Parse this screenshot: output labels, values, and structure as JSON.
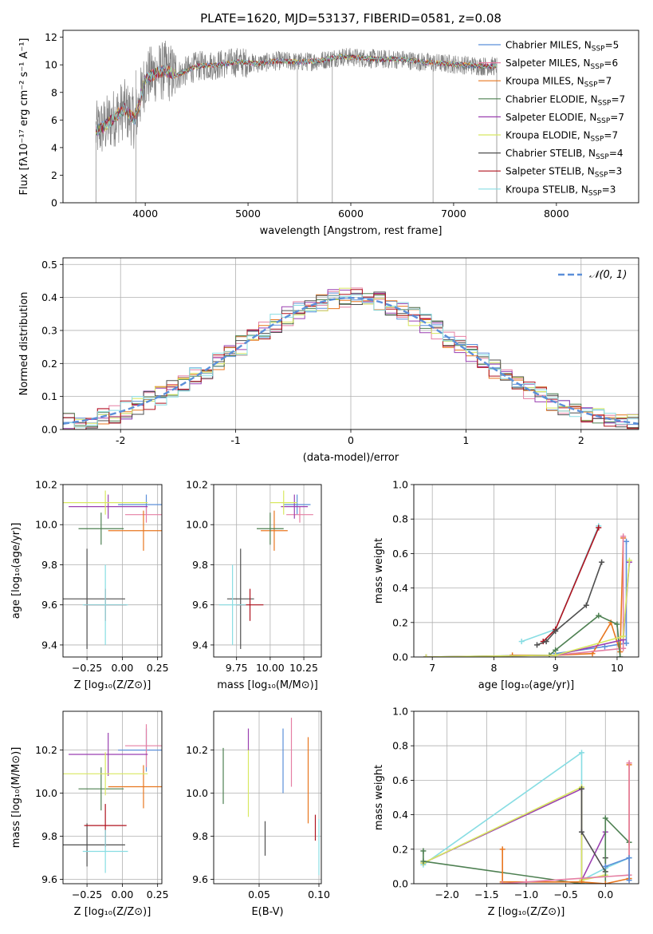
{
  "figure": {
    "title": "PLATE=1620, MJD=53137, FIBERID=0581, z=0.08"
  },
  "colors": {
    "Chabrier MILES": "#5b8fd9",
    "Salpeter MILES": "#e57fa3",
    "Kroupa MILES": "#e8761f",
    "Chabrier ELODIE": "#4e8052",
    "Salpeter ELODIE": "#9a3fb0",
    "Kroupa ELODIE": "#d8e860",
    "Chabrier STELIB": "#4f4f4f",
    "Salpeter STELIB": "#b0131f",
    "Kroupa STELIB": "#88dde3"
  },
  "chart_data": [
    {
      "id": "spectrum",
      "type": "line",
      "xlabel": "wavelength [Angstrom, rest frame]",
      "ylabel": "Flux [fλ10⁻¹⁷ erg cm⁻² s⁻¹ A⁻¹]",
      "xlim": [
        3200,
        8800
      ],
      "ylim": [
        0,
        12.5
      ],
      "xticks": [
        4000,
        5000,
        6000,
        7000,
        8000
      ],
      "yticks": [
        0,
        2,
        4,
        6,
        8,
        10,
        12
      ],
      "grid": false,
      "legend_position": "right",
      "legend": [
        {
          "label": "Chabrier MILES, N",
          "sub": "SSP",
          "suffix": "=5",
          "model": "Chabrier MILES"
        },
        {
          "label": "Salpeter MILES, N",
          "sub": "SSP",
          "suffix": "=6",
          "model": "Salpeter MILES"
        },
        {
          "label": "Kroupa MILES, N",
          "sub": "SSP",
          "suffix": "=7",
          "model": "Kroupa MILES"
        },
        {
          "label": "Chabrier ELODIE, N",
          "sub": "SSP",
          "suffix": "=7",
          "model": "Chabrier ELODIE"
        },
        {
          "label": "Salpeter ELODIE, N",
          "sub": "SSP",
          "suffix": "=7",
          "model": "Salpeter ELODIE"
        },
        {
          "label": "Kroupa ELODIE, N",
          "sub": "SSP",
          "suffix": "=7",
          "model": "Kroupa ELODIE"
        },
        {
          "label": "Chabrier STELIB, N",
          "sub": "SSP",
          "suffix": "=4",
          "model": "Chabrier STELIB"
        },
        {
          "label": "Salpeter STELIB, N",
          "sub": "SSP",
          "suffix": "=3",
          "model": "Salpeter STELIB"
        },
        {
          "label": "Kroupa STELIB, N",
          "sub": "SSP",
          "suffix": "=3",
          "model": "Kroupa STELIB"
        }
      ],
      "data_color": "#808080",
      "model_curve": {
        "x": [
          3520,
          3600,
          3700,
          3800,
          3900,
          4000,
          4100,
          4200,
          4300,
          4500,
          4700,
          4900,
          5100,
          5300,
          5500,
          5700,
          5900,
          6100,
          6300,
          6500,
          6700,
          6900,
          7100,
          7300,
          7420
        ],
        "y": [
          5.2,
          5.5,
          6.2,
          6.8,
          6.0,
          9.0,
          9.4,
          9.6,
          9.2,
          9.9,
          10.0,
          10.2,
          10.1,
          10.3,
          10.2,
          10.3,
          10.6,
          10.5,
          10.4,
          10.4,
          10.2,
          10.1,
          10.0,
          9.9,
          9.9
        ]
      }
    },
    {
      "id": "residuals",
      "type": "bar",
      "xlabel": "(data-model)/error",
      "ylabel": "Normed distribution",
      "xlim": [
        -2.5,
        2.5
      ],
      "ylim": [
        0,
        0.52
      ],
      "xticks": [
        -2,
        -1,
        0,
        1,
        2
      ],
      "yticks": [
        0.0,
        0.1,
        0.2,
        0.3,
        0.4,
        0.5
      ],
      "grid": true,
      "legend_position": "top-right",
      "reference": {
        "label": "𝒩(0, 1)",
        "color": "#5b8fd9"
      },
      "bin_start": -2.5,
      "bin_width": 0.1
    },
    {
      "id": "age-vs-Z",
      "type": "scatter",
      "xlabel": "Z [log₁₀(Z/Z⊙)]",
      "ylabel": "age  [log₁₀(age/yr)]",
      "xlim": [
        -0.42,
        0.28
      ],
      "ylim": [
        9.34,
        10.2
      ],
      "xticks": [
        -0.25,
        0.0,
        0.25
      ],
      "xticklabels": [
        "−0.25",
        "0.00",
        "0.25"
      ],
      "yticks": [
        9.4,
        9.6,
        9.8,
        10.0,
        10.2
      ],
      "grid": true,
      "points": [
        {
          "model": "Chabrier MILES",
          "x": 0.17,
          "xe": 0.2,
          "y": 10.1,
          "ye": 0.05
        },
        {
          "model": "Salpeter MILES",
          "x": 0.17,
          "xe": 0.15,
          "y": 10.05,
          "ye": 0.04
        },
        {
          "model": "Kroupa MILES",
          "x": 0.15,
          "xe": 0.25,
          "y": 9.97,
          "ye": 0.1
        },
        {
          "model": "Chabrier ELODIE",
          "x": -0.15,
          "xe": 0.16,
          "y": 9.98,
          "ye": 0.08
        },
        {
          "model": "Salpeter ELODIE",
          "x": -0.1,
          "xe": 0.28,
          "y": 10.09,
          "ye": 0.06
        },
        {
          "model": "Kroupa ELODIE",
          "x": -0.12,
          "xe": 0.3,
          "y": 10.11,
          "ye": 0.06
        },
        {
          "model": "Chabrier STELIB",
          "x": -0.25,
          "xe": 0.27,
          "y": 9.63,
          "ye": 0.25
        },
        {
          "model": "Salpeter STELIB",
          "x": -0.12,
          "xe": 0.15,
          "y": 9.6,
          "ye": 0.08
        },
        {
          "model": "Kroupa STELIB",
          "x": -0.12,
          "xe": 0.16,
          "y": 9.6,
          "ye": 0.2
        }
      ]
    },
    {
      "id": "age-vs-mass",
      "type": "scatter",
      "xlabel": "mass [log₁₀(M/M⊙)]",
      "ylabel": "",
      "xlim": [
        9.58,
        10.38
      ],
      "ylim": [
        9.34,
        10.2
      ],
      "xticks": [
        9.75,
        10.0,
        10.25
      ],
      "xticklabels": [
        "9.75",
        "10.00",
        "10.25"
      ],
      "yticks": [
        9.4,
        9.6,
        9.8,
        10.0,
        10.2
      ],
      "grid": true
    },
    {
      "id": "weight-vs-age",
      "type": "line",
      "xlabel": "age  [log₁₀(age/yr)]",
      "ylabel": "mass weight",
      "xlim": [
        6.7,
        10.35
      ],
      "ylim": [
        0,
        1.0
      ],
      "xticks": [
        7,
        8,
        9,
        10
      ],
      "yticks": [
        0.0,
        0.2,
        0.4,
        0.6,
        0.8,
        1.0
      ],
      "grid": true,
      "series": [
        {
          "model": "Kroupa STELIB",
          "x": [
            8.45,
            9.0,
            9.7
          ],
          "y": [
            0.09,
            0.16,
            0.76
          ]
        },
        {
          "model": "Salpeter STELIB",
          "x": [
            8.8,
            9.0,
            9.7
          ],
          "y": [
            0.09,
            0.16,
            0.75
          ]
        },
        {
          "model": "Chabrier STELIB",
          "x": [
            8.7,
            8.85,
            9.0,
            9.5,
            9.75
          ],
          "y": [
            0.07,
            0.09,
            0.15,
            0.3,
            0.55
          ]
        },
        {
          "model": "Chabrier MILES",
          "x": [
            9.0,
            9.8,
            10.15,
            10.15
          ],
          "y": [
            0.02,
            0.06,
            0.08,
            0.67
          ]
        },
        {
          "model": "Kroupa MILES",
          "x": [
            8.3,
            9.0,
            9.6,
            9.9,
            10.05,
            10.1
          ],
          "y": [
            0.01,
            0.01,
            0.02,
            0.2,
            0.03,
            0.69
          ]
        },
        {
          "model": "Salpeter MILES",
          "x": [
            9.0,
            10.1,
            10.1
          ],
          "y": [
            0.01,
            0.05,
            0.7
          ]
        },
        {
          "model": "Chabrier ELODIE",
          "x": [
            6.9,
            8.9,
            9.0,
            9.7,
            10.0,
            10.05
          ],
          "y": [
            0.0,
            0.01,
            0.04,
            0.24,
            0.19,
            0.0
          ]
        },
        {
          "model": "Salpeter ELODIE",
          "x": [
            6.9,
            9.0,
            10.1,
            10.2
          ],
          "y": [
            0.0,
            0.01,
            0.1,
            0.55
          ]
        },
        {
          "model": "Kroupa ELODIE",
          "x": [
            6.9,
            9.0,
            10.1,
            10.2
          ],
          "y": [
            0.0,
            0.01,
            0.12,
            0.56
          ]
        }
      ]
    },
    {
      "id": "mass-vs-Z",
      "type": "scatter",
      "xlabel": "Z [log₁₀(Z/Z⊙)]",
      "ylabel": "mass [log₁₀(M/M⊙)]",
      "xlim": [
        -0.42,
        0.28
      ],
      "ylim": [
        9.58,
        10.38
      ],
      "xticks": [
        -0.25,
        0.0,
        0.25
      ],
      "xticklabels": [
        "−0.25",
        "0.00",
        "0.25"
      ],
      "yticks": [
        9.6,
        9.8,
        10.0,
        10.2
      ],
      "grid": true
    },
    {
      "id": "mass-vs-EBV",
      "type": "scatter",
      "xlabel": "E(B-V)",
      "ylabel": "",
      "xlim": [
        0.012,
        0.102
      ],
      "ylim": [
        9.58,
        10.38
      ],
      "xticks": [
        0.05,
        0.1
      ],
      "xticklabels": [
        "0.05",
        "0.10"
      ],
      "yticks": [
        9.6,
        9.8,
        10.0,
        10.2
      ],
      "grid": true,
      "points": [
        {
          "model": "Chabrier ELODIE",
          "x": 0.02,
          "y": 10.08,
          "ye": 0.13
        },
        {
          "model": "Kroupa ELODIE",
          "x": 0.041,
          "y": 10.05,
          "ye": 0.16
        },
        {
          "model": "Salpeter ELODIE",
          "x": 0.041,
          "y": 10.25,
          "ye": 0.05
        },
        {
          "model": "Chabrier STELIB",
          "x": 0.055,
          "y": 9.79,
          "ye": 0.08
        },
        {
          "model": "Chabrier MILES",
          "x": 0.07,
          "y": 10.15,
          "ye": 0.15
        },
        {
          "model": "Salpeter MILES",
          "x": 0.077,
          "y": 10.19,
          "ye": 0.16
        },
        {
          "model": "Kroupa MILES",
          "x": 0.091,
          "y": 10.06,
          "ye": 0.2
        },
        {
          "model": "Salpeter STELIB",
          "x": 0.097,
          "y": 9.84,
          "ye": 0.06
        },
        {
          "model": "Kroupa STELIB",
          "x": 0.1,
          "y": 9.75,
          "ye": 0.13
        }
      ]
    },
    {
      "id": "weight-vs-Z",
      "type": "line",
      "xlabel": "Z [log₁₀(Z/Z⊙)]",
      "ylabel": "mass weight",
      "xlim": [
        -2.42,
        0.42
      ],
      "ylim": [
        0,
        1.0
      ],
      "xticks": [
        -2.0,
        -1.5,
        -1.0,
        -0.5,
        0.0
      ],
      "xticklabels": [
        "−2.0",
        "−1.5",
        "−1.0",
        "−0.5",
        "0.0"
      ],
      "yticks": [
        0.0,
        0.2,
        0.4,
        0.6,
        0.8,
        1.0
      ],
      "grid": true,
      "series": [
        {
          "model": "Kroupa STELIB",
          "x": [
            -2.3,
            -0.3,
            -0.3,
            0.0,
            0.3
          ],
          "y": [
            0.11,
            0.76,
            0.02,
            0.09,
            0.15
          ]
        },
        {
          "model": "Salpeter ELODIE",
          "x": [
            -2.3,
            -0.3,
            -0.3,
            0.0
          ],
          "y": [
            0.12,
            0.55,
            0.02,
            0.3
          ]
        },
        {
          "model": "Kroupa ELODIE",
          "x": [
            -2.3,
            -0.3,
            -0.3,
            0.0
          ],
          "y": [
            0.12,
            0.56,
            0.02,
            0.05
          ]
        },
        {
          "model": "Chabrier STELIB",
          "x": [
            -0.3,
            -0.3,
            0.0,
            0.0
          ],
          "y": [
            0.55,
            0.3,
            0.07,
            0.15
          ]
        },
        {
          "model": "Chabrier ELODIE",
          "x": [
            -2.3,
            -2.3,
            -0.3,
            0.0,
            0.0,
            0.3
          ],
          "y": [
            0.19,
            0.13,
            0.0,
            0.0,
            0.38,
            0.24
          ]
        },
        {
          "model": "Kroupa MILES",
          "x": [
            -1.3,
            -1.3,
            -1.0,
            -0.3,
            0.0,
            0.3,
            0.3
          ],
          "y": [
            0.2,
            0.01,
            0.01,
            0.01,
            0.0,
            0.03,
            0.69
          ]
        },
        {
          "model": "Salpeter MILES",
          "x": [
            -1.3,
            -1.0,
            0.3,
            0.3
          ],
          "y": [
            0.0,
            0.01,
            0.05,
            0.7
          ]
        },
        {
          "model": "Chabrier MILES",
          "x": [
            0.0,
            0.3,
            0.3
          ],
          "y": [
            0.1,
            0.15,
            0.02
          ]
        }
      ]
    }
  ]
}
